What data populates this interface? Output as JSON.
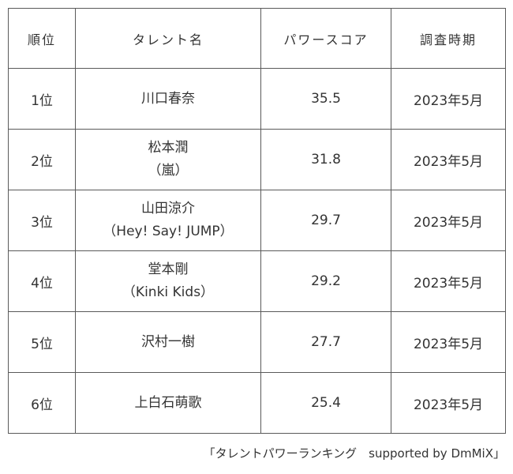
{
  "chart_data": {
    "type": "table",
    "title": "タレントパワーランキング",
    "columns": [
      "順位",
      "タレント名",
      "パワースコア",
      "調査時期"
    ],
    "rows": [
      [
        "1位",
        "川口春奈",
        "35.5",
        "2023年5月"
      ],
      [
        "2位",
        "松本潤\n（嵐）",
        "31.8",
        "2023年5月"
      ],
      [
        "3位",
        "山田涼介\n（Hey! Say! JUMP）",
        "29.7",
        "2023年5月"
      ],
      [
        "4位",
        "堂本剛\n（Kinki Kids）",
        "29.2",
        "2023年5月"
      ],
      [
        "5位",
        "沢村一樹",
        "27.7",
        "2023年5月"
      ],
      [
        "6位",
        "上白石萌歌",
        "25.4",
        "2023年5月"
      ]
    ],
    "layout": {
      "grid": "all-borders",
      "border_color": "#5a5a5a",
      "text_color": "#333333",
      "background": "#ffffff"
    }
  },
  "caption": "「タレントパワーランキング　supported by DmMiX」"
}
